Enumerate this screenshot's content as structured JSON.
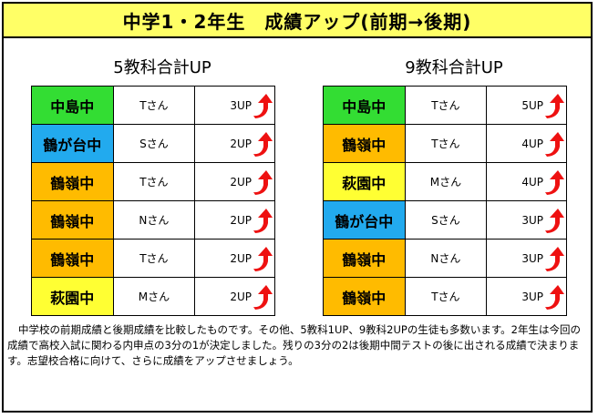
{
  "title": "中学1・2年生　成績アップ(前期→後期)",
  "colors": {
    "title_bg": "#ffff66",
    "green": "#33dd33",
    "blue": "#22aaee",
    "orange": "#ffbb00",
    "yellow": "#ffff33",
    "arrow": "#ee1111"
  },
  "left": {
    "heading": "5教科合計UP",
    "rows": [
      {
        "school": "中島中",
        "name": "Tさん",
        "up": "3UP",
        "color": "green"
      },
      {
        "school": "鶴が台中",
        "name": "Sさん",
        "up": "2UP",
        "color": "blue"
      },
      {
        "school": "鶴嶺中",
        "name": "Tさん",
        "up": "2UP",
        "color": "orange"
      },
      {
        "school": "鶴嶺中",
        "name": "Nさん",
        "up": "2UP",
        "color": "orange"
      },
      {
        "school": "鶴嶺中",
        "name": "Tさん",
        "up": "2UP",
        "color": "orange"
      },
      {
        "school": "萩園中",
        "name": "Mさん",
        "up": "2UP",
        "color": "yellow"
      }
    ]
  },
  "right": {
    "heading": "9教科合計UP",
    "rows": [
      {
        "school": "中島中",
        "name": "Tさん",
        "up": "5UP",
        "color": "green"
      },
      {
        "school": "鶴嶺中",
        "name": "Tさん",
        "up": "4UP",
        "color": "orange"
      },
      {
        "school": "萩園中",
        "name": "Mさん",
        "up": "4UP",
        "color": "yellow"
      },
      {
        "school": "鶴が台中",
        "name": "Sさん",
        "up": "3UP",
        "color": "blue"
      },
      {
        "school": "鶴嶺中",
        "name": "Nさん",
        "up": "3UP",
        "color": "orange"
      },
      {
        "school": "鶴嶺中",
        "name": "Tさん",
        "up": "3UP",
        "color": "orange"
      }
    ]
  },
  "note": "中学校の前期成績と後期成績を比較したものです。その他、5教科1UP、9教科2UPの生徒も多数います。2年生は今回の成績で高校入試に関わる内申点の3分の1が決定しました。残りの3分の2は後期中間テストの後に出される成績で決まります。志望校合格に向けて、さらに成績をアップさせましょう。"
}
